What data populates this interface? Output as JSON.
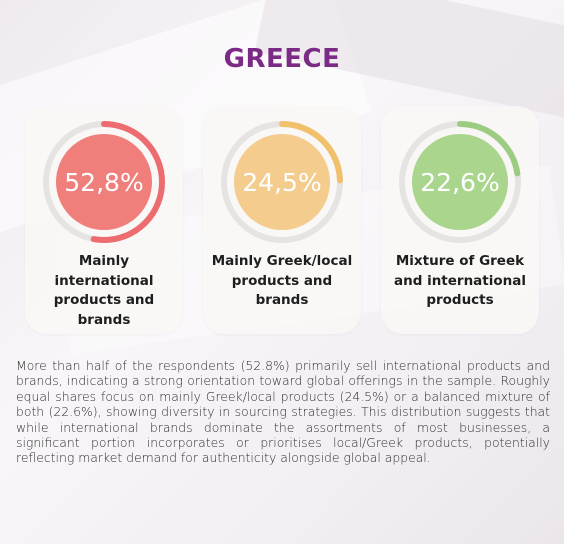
{
  "title": "GREECE",
  "chart_data": {
    "type": "donut",
    "series": [
      {
        "label": "Mainly international products and brands",
        "value": 52.8,
        "value_text": "52,8%",
        "fill": "#f07f7c",
        "ring": "#ec6c70",
        "track": "#e6e4e2"
      },
      {
        "label": "Mainly Greek/local products and brands",
        "value": 24.5,
        "value_text": "24,5%",
        "fill": "#f4cc8e",
        "ring": "#f1c06b",
        "track": "#e6e4e2"
      },
      {
        "label": "Mixture of Greek and international products",
        "value": 22.6,
        "value_text": "22,6%",
        "fill": "#a9d58d",
        "ring": "#9ccc82",
        "track": "#e6e4e2"
      }
    ]
  },
  "description": "More than half of the respondents (52.8%) primarily sell international products and brands, indicating a strong orientation toward global offerings in the sample. Roughly equal shares focus on mainly Greek/local products (24.5%) or a balanced mixture of both (22.6%), showing diversity in sourcing strategies. This distribution suggests that while international brands dominate the assortments of most businesses, a significant portion incorporates or prioritises local/Greek products, potentially reflecting market demand for authenticity alongside global appeal."
}
